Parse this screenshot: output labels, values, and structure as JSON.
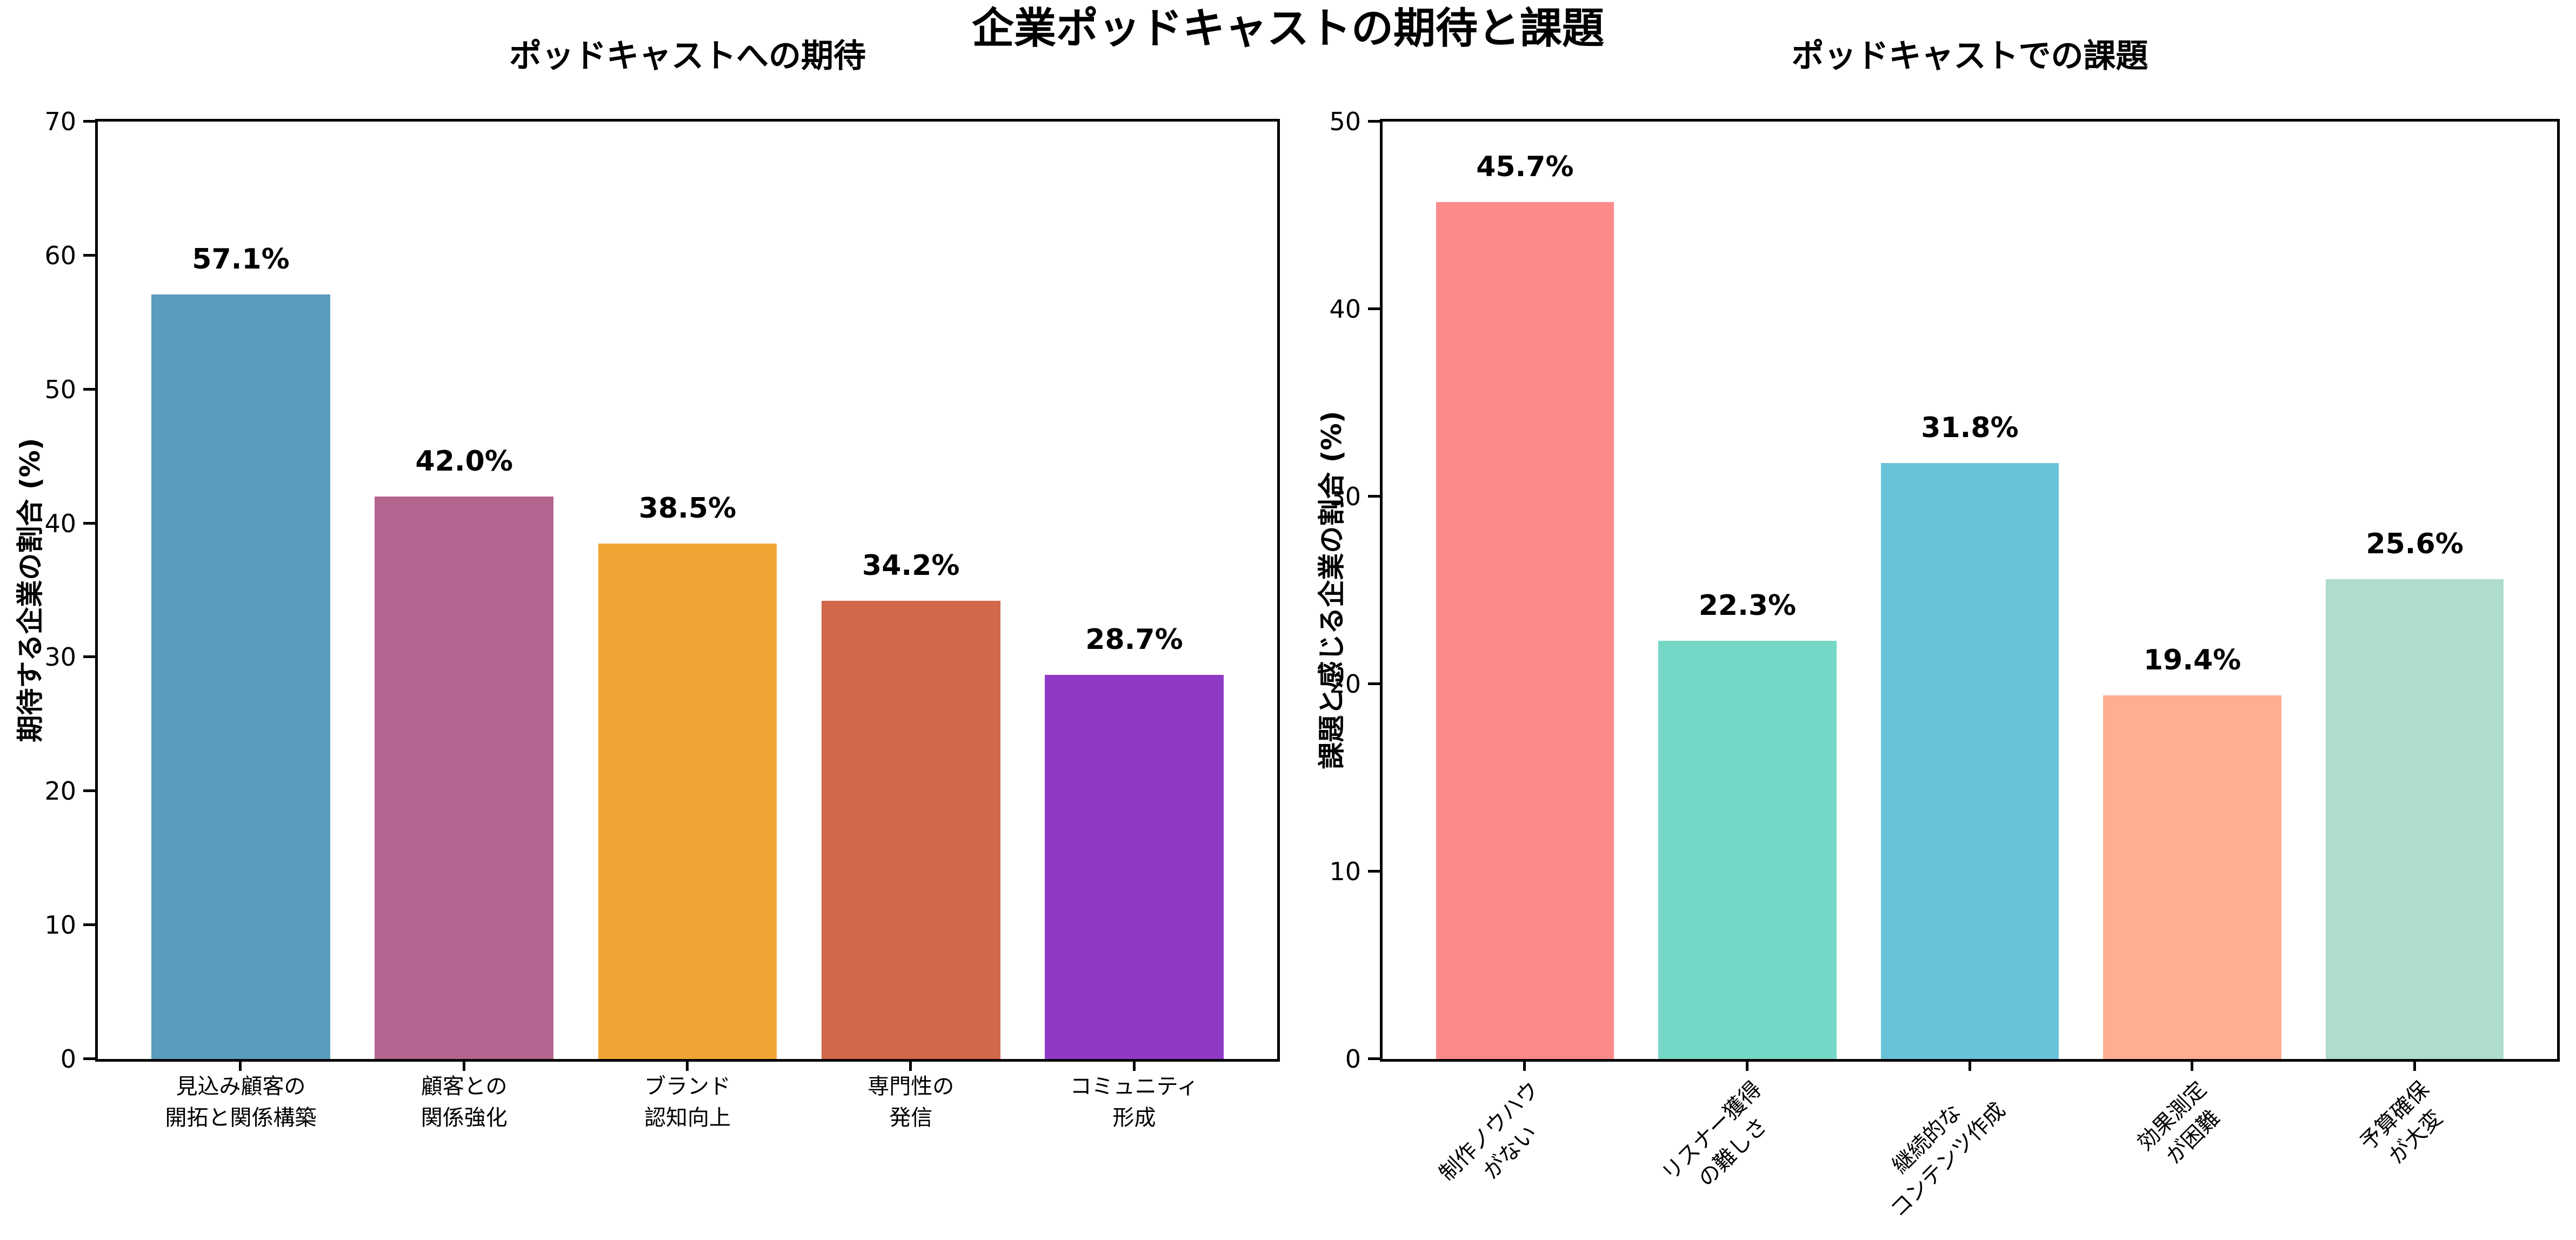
{
  "figure": {
    "suptitle": "企業ポッドキャストの期待と課題"
  },
  "chart_data": [
    {
      "type": "bar",
      "title": "ポッドキャストへの期待",
      "ylabel": "期待する企業の割合 (%)",
      "xlabel": "",
      "ylim": [
        0,
        70
      ],
      "yticks": [
        0,
        10,
        20,
        30,
        40,
        50,
        60,
        70
      ],
      "grid": false,
      "legend": "none",
      "categories": [
        "見込み顧客の\n開拓と関係構築",
        "顧客との\n関係強化",
        "ブランド\n認知向上",
        "専門性の\n発信",
        "コミュニティ\n形成"
      ],
      "values": [
        57.1,
        42.0,
        38.5,
        34.2,
        28.7
      ],
      "value_labels": [
        "57.1%",
        "42.0%",
        "38.5%",
        "34.2%",
        "28.7%"
      ],
      "colors": [
        "#5A9CBB",
        "#B4648E",
        "#F0A433",
        "#D2674C",
        "#8F3AC6"
      ],
      "xtick_rotation": 0
    },
    {
      "type": "bar",
      "title": "ポッドキャストでの課題",
      "ylabel": "課題と感じる企業の割合 (%)",
      "xlabel": "",
      "ylim": [
        0,
        50
      ],
      "yticks": [
        0,
        10,
        20,
        30,
        40,
        50
      ],
      "grid": false,
      "legend": "none",
      "categories": [
        "制作ノウハウ\nがない",
        "リスナー獲得\nの難しさ",
        "継続的な\nコンテンツ作成",
        "効果測定\nが困難",
        "予算確保\nが大変"
      ],
      "values": [
        45.7,
        22.3,
        31.8,
        19.4,
        25.6
      ],
      "value_labels": [
        "45.7%",
        "22.3%",
        "31.8%",
        "19.4%",
        "25.6%"
      ],
      "colors": [
        "#FD8A8A",
        "#75D7C5",
        "#68C3D9",
        "#FFAE91",
        "#AEDCCD"
      ],
      "xtick_rotation": 45
    }
  ]
}
